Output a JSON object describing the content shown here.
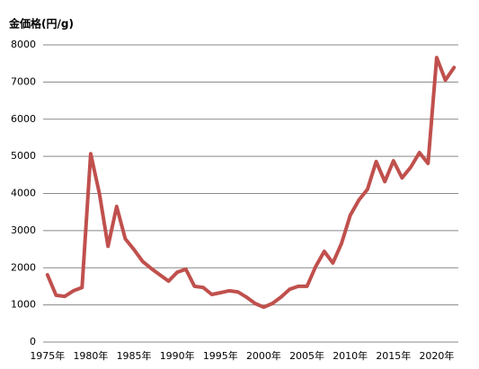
{
  "chart_data": {
    "type": "line",
    "title": "金価格(円/g)",
    "categories": [
      "1975年",
      null,
      null,
      null,
      null,
      "1980年",
      null,
      null,
      null,
      null,
      "1985年",
      null,
      null,
      null,
      null,
      "1990年",
      null,
      null,
      null,
      null,
      "1995年",
      null,
      null,
      null,
      null,
      "2000年",
      null,
      null,
      null,
      null,
      "2005年",
      null,
      null,
      null,
      null,
      "2010年",
      null,
      null,
      null,
      null,
      "2015年",
      null,
      null,
      null,
      null,
      "2020年",
      null,
      null
    ],
    "values": [
      1810,
      1260,
      1230,
      1380,
      1470,
      5070,
      4000,
      2580,
      3650,
      2780,
      2490,
      2170,
      1980,
      1810,
      1640,
      1880,
      1960,
      1500,
      1470,
      1280,
      1330,
      1380,
      1350,
      1210,
      1040,
      940,
      1040,
      1210,
      1420,
      1500,
      1500,
      2030,
      2440,
      2130,
      2660,
      3410,
      3820,
      4110,
      4860,
      4320,
      4880,
      4420,
      4710,
      5100,
      4810,
      7660,
      7050,
      7390
    ],
    "color": "#c0504d",
    "ylim": [
      0,
      8000
    ],
    "yticks": [
      0,
      1000,
      2000,
      3000,
      4000,
      5000,
      6000,
      7000,
      8000
    ],
    "grid": true
  }
}
